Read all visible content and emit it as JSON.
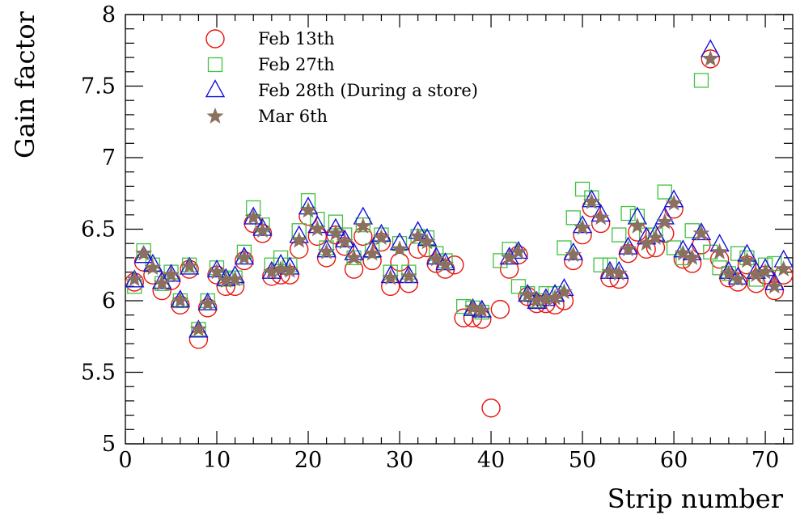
{
  "chart_data": {
    "type": "scatter",
    "title": "",
    "xlabel": "Strip number",
    "ylabel": "Gain factor",
    "xlim": [
      0,
      73
    ],
    "ylim": [
      5,
      8
    ],
    "x_ticks": [
      0,
      10,
      20,
      30,
      40,
      50,
      60,
      70
    ],
    "x_tick_labels": [
      "0",
      "10",
      "20",
      "30",
      "40",
      "50",
      "60",
      "70"
    ],
    "y_ticks": [
      5,
      5.5,
      6,
      6.5,
      7,
      7.5,
      8
    ],
    "y_tick_labels": [
      "5",
      "5.5",
      "6",
      "6.5",
      "7",
      "7.5",
      "8"
    ],
    "grid": false,
    "legend_position": "top-left",
    "series": [
      {
        "name": "Feb 13th",
        "marker": "circle",
        "color": "#e8140c",
        "x": [
          1,
          2,
          3,
          4,
          5,
          6,
          7,
          8,
          9,
          10,
          11,
          12,
          13,
          14,
          15,
          16,
          17,
          18,
          19,
          20,
          21,
          22,
          23,
          24,
          25,
          26,
          27,
          28,
          29,
          30,
          31,
          32,
          33,
          34,
          35,
          36,
          37,
          38,
          39,
          40,
          41,
          42,
          43,
          44,
          45,
          46,
          47,
          48,
          49,
          50,
          51,
          52,
          53,
          54,
          55,
          56,
          57,
          58,
          59,
          60,
          61,
          62,
          63,
          64,
          65,
          66,
          67,
          68,
          69,
          70,
          71,
          72
        ],
        "y": [
          6.13,
          6.27,
          6.18,
          6.07,
          6.14,
          5.97,
          6.22,
          5.73,
          5.95,
          6.18,
          6.1,
          6.1,
          6.28,
          6.54,
          6.47,
          6.17,
          6.18,
          6.18,
          6.36,
          6.59,
          6.45,
          6.3,
          6.46,
          6.38,
          6.22,
          6.45,
          6.28,
          6.41,
          6.1,
          6.27,
          6.12,
          6.36,
          6.37,
          6.26,
          6.22,
          6.25,
          5.88,
          5.88,
          5.87,
          5.25,
          5.94,
          6.22,
          6.32,
          6.03,
          5.98,
          5.98,
          5.97,
          6.0,
          6.28,
          6.46,
          6.65,
          6.54,
          6.16,
          6.15,
          6.33,
          6.48,
          6.36,
          6.37,
          6.47,
          6.64,
          6.29,
          6.26,
          6.39,
          7.69,
          6.29,
          6.16,
          6.13,
          6.25,
          6.12,
          6.18,
          6.07,
          6.18
        ]
      },
      {
        "name": "Feb 27th",
        "marker": "square",
        "color": "#3fc13f",
        "x": [
          1,
          2,
          3,
          4,
          5,
          6,
          7,
          8,
          9,
          10,
          11,
          12,
          13,
          14,
          15,
          16,
          17,
          18,
          19,
          20,
          21,
          22,
          23,
          24,
          25,
          26,
          27,
          28,
          29,
          30,
          31,
          32,
          33,
          34,
          35,
          36,
          37,
          38,
          39,
          40,
          41,
          42,
          43,
          44,
          45,
          46,
          47,
          48,
          49,
          50,
          51,
          52,
          53,
          54,
          55,
          56,
          57,
          58,
          59,
          60,
          61,
          62,
          63,
          64,
          65,
          66,
          67,
          68,
          69,
          70,
          71,
          72
        ],
        "y": [
          6.1,
          6.35,
          6.25,
          6.12,
          6.2,
          6.0,
          6.25,
          5.8,
          6.0,
          6.23,
          6.15,
          6.16,
          6.34,
          6.65,
          6.53,
          6.25,
          6.3,
          6.25,
          6.49,
          6.7,
          6.57,
          6.37,
          6.55,
          6.46,
          6.3,
          6.53,
          6.35,
          6.46,
          6.2,
          6.4,
          6.2,
          6.45,
          6.44,
          6.33,
          6.28,
          null,
          5.96,
          5.95,
          5.92,
          null,
          6.28,
          6.36,
          6.1,
          6.05,
          6.0,
          6.05,
          6.05,
          6.37,
          6.58,
          6.78,
          6.72,
          6.25,
          6.25,
          6.46,
          6.61,
          6.59,
          6.46,
          6.46,
          6.76,
          6.37,
          6.3,
          6.49,
          7.54,
          6.34,
          6.23,
          6.19,
          6.33,
          6.3,
          6.15,
          6.25,
          6.26,
          null
        ]
      },
      {
        "name": "Feb 28th (During a store)",
        "marker": "triangle",
        "color": "#1010e0",
        "x": [
          1,
          2,
          3,
          4,
          5,
          6,
          7,
          8,
          9,
          10,
          11,
          12,
          13,
          14,
          15,
          16,
          17,
          18,
          19,
          20,
          21,
          22,
          23,
          24,
          25,
          26,
          27,
          28,
          29,
          30,
          31,
          32,
          33,
          34,
          35,
          36,
          37,
          38,
          39,
          40,
          41,
          42,
          43,
          44,
          45,
          46,
          47,
          48,
          49,
          50,
          51,
          52,
          53,
          54,
          55,
          56,
          57,
          58,
          59,
          60,
          61,
          62,
          63,
          64,
          65,
          66,
          67,
          68,
          69,
          70,
          71,
          72
        ],
        "y": [
          6.14,
          6.31,
          6.25,
          6.13,
          6.18,
          6.0,
          6.23,
          5.79,
          5.98,
          6.21,
          6.15,
          6.17,
          6.3,
          6.58,
          6.5,
          6.2,
          6.25,
          6.23,
          6.45,
          6.65,
          6.52,
          6.35,
          6.5,
          6.42,
          6.33,
          6.58,
          6.35,
          6.46,
          6.17,
          6.4,
          6.17,
          6.48,
          6.43,
          6.3,
          6.26,
          null,
          null,
          5.94,
          5.93,
          null,
          null,
          6.3,
          6.34,
          6.04,
          5.99,
          6.01,
          6.04,
          6.08,
          6.33,
          6.52,
          6.7,
          6.6,
          6.2,
          6.2,
          6.37,
          6.58,
          6.44,
          6.46,
          6.58,
          6.7,
          6.35,
          6.33,
          6.47,
          7.75,
          6.39,
          6.2,
          6.16,
          6.32,
          6.2,
          6.22,
          6.12,
          6.28
        ]
      },
      {
        "name": "Mar 6th",
        "marker": "star",
        "color": "#8b7060",
        "x": [
          1,
          2,
          3,
          4,
          5,
          6,
          7,
          8,
          9,
          10,
          11,
          12,
          13,
          14,
          15,
          16,
          17,
          18,
          19,
          20,
          21,
          22,
          23,
          24,
          25,
          26,
          27,
          28,
          29,
          30,
          31,
          32,
          33,
          34,
          35,
          36,
          37,
          38,
          39,
          40,
          41,
          42,
          43,
          44,
          45,
          46,
          47,
          48,
          49,
          50,
          51,
          52,
          53,
          54,
          55,
          56,
          57,
          58,
          59,
          60,
          61,
          62,
          63,
          64,
          65,
          66,
          67,
          68,
          69,
          70,
          71,
          72
        ],
        "y": [
          6.15,
          6.33,
          6.23,
          6.12,
          6.18,
          6.0,
          6.24,
          5.8,
          5.98,
          6.2,
          6.14,
          6.15,
          6.3,
          6.58,
          6.49,
          6.2,
          6.22,
          6.21,
          6.42,
          6.63,
          6.5,
          6.34,
          6.47,
          6.41,
          6.3,
          6.52,
          6.33,
          6.44,
          6.16,
          6.36,
          6.17,
          6.45,
          6.41,
          6.29,
          6.25,
          null,
          null,
          5.95,
          5.93,
          null,
          null,
          6.3,
          6.34,
          6.04,
          6.0,
          6.01,
          6.02,
          6.06,
          6.32,
          6.51,
          6.69,
          6.58,
          6.2,
          6.19,
          6.36,
          6.52,
          6.4,
          6.44,
          6.55,
          6.68,
          6.33,
          6.3,
          6.47,
          7.69,
          6.34,
          6.19,
          6.15,
          6.28,
          6.18,
          6.2,
          6.1,
          6.22
        ]
      }
    ]
  }
}
